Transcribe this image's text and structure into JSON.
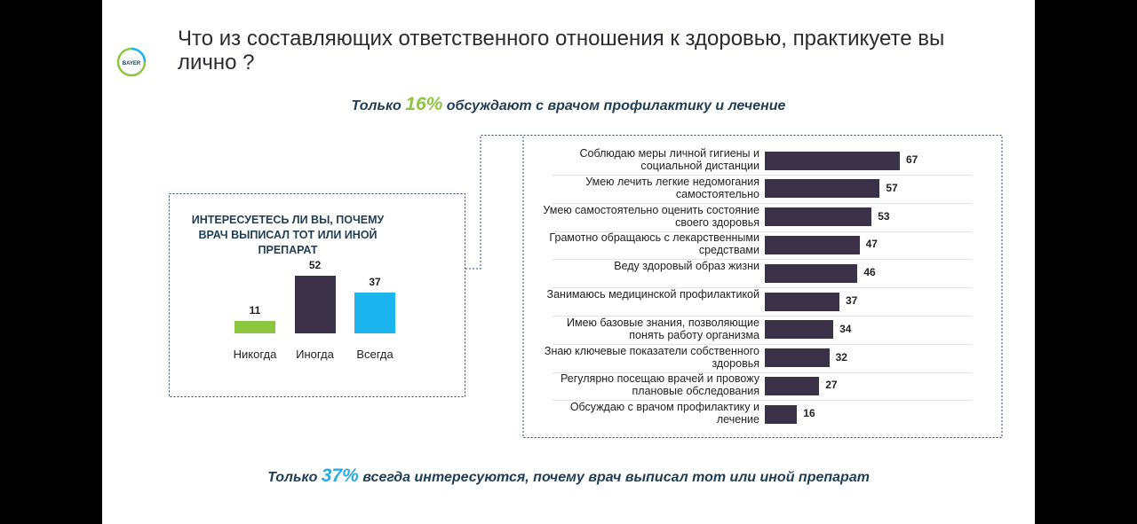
{
  "title": "Что из составляющих ответственного отношения к здоровью, практикуете вы лично ?",
  "logo": "BAYER",
  "callout_top": {
    "before": "Только",
    "highlight": "16%",
    "after": "обсуждают с врачом профилактику и лечение"
  },
  "callout_bottom": {
    "before": "Только",
    "highlight": "37%",
    "after": "всегда интересуются, почему врач выписал тот или иной препарат"
  },
  "chart_data": [
    {
      "type": "bar",
      "title": "ИНТЕРЕСУЕТЕСЬ ЛИ ВЫ, ПОЧЕМУ ВРАЧ ВЫПИСАЛ ТОТ ИЛИ ИНОЙ ПРЕПАРАТ",
      "categories": [
        "Никогда",
        "Иногда",
        "Всегда"
      ],
      "values": [
        11,
        52,
        37
      ],
      "colors": [
        "#8cc63f",
        "#3b3148",
        "#1cb5f0"
      ]
    },
    {
      "type": "barh",
      "categories": [
        "Соблюдаю меры личной гигиены и социальной дистанции",
        "Умею лечить легкие недомогания самостоятельно",
        "Умею самостоятельно оценить состояние своего здоровья",
        "Грамотно обращаюсь с лекарственными средствами",
        "Веду здоровый образ жизни",
        "Занимаюсь медицинской профилактикой",
        "Имею базовые знания, позволяющие понять работу организма",
        "Знаю ключевые показатели собственного здоровья",
        "Регулярно посещаю врачей и провожу плановые обследования",
        "Обсуждаю с врачом профилактику и лечение"
      ],
      "values": [
        67,
        57,
        53,
        47,
        46,
        37,
        34,
        32,
        27,
        16
      ],
      "color": "#3b3148"
    }
  ]
}
